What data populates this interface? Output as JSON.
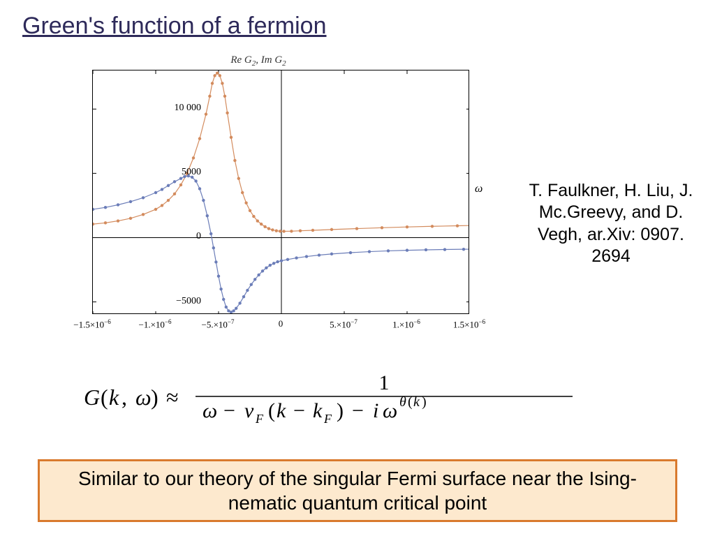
{
  "title": "Green's function of a fermion",
  "chart": {
    "type": "line",
    "title_parts": {
      "re": "Re",
      "g2a": "G",
      "sub2a": "2",
      "sep": ", ",
      "im": "Im",
      "g2b": "G",
      "sub2b": "2"
    },
    "xlim": [
      -1.5e-06,
      1.5e-06
    ],
    "ylim": [
      -6000,
      13000
    ],
    "xticks": [
      {
        "val": -1.5e-06,
        "label": "−1.5×10",
        "sup": "−6"
      },
      {
        "val": -1e-06,
        "label": "−1.×10",
        "sup": "−6"
      },
      {
        "val": -5e-07,
        "label": "−5.×10",
        "sup": "−7"
      },
      {
        "val": 0,
        "label": "0",
        "sup": ""
      },
      {
        "val": 5e-07,
        "label": "5.×10",
        "sup": "−7"
      },
      {
        "val": 1e-06,
        "label": "1.×10",
        "sup": "−6"
      },
      {
        "val": 1.5e-06,
        "label": "1.5×10",
        "sup": "−6"
      }
    ],
    "yticks": [
      {
        "val": -5000,
        "label": "−5000"
      },
      {
        "val": 0,
        "label": "0"
      },
      {
        "val": 5000,
        "label": "5000"
      },
      {
        "val": 10000,
        "label": "10 000"
      }
    ],
    "axis_label_omega": "ω",
    "background_color": "#ffffff",
    "axis_color": "#000000",
    "series": [
      {
        "name": "ImG2",
        "color": "#d38b5d",
        "marker_color": "#d38b5d",
        "line_width": 1.2,
        "marker_size": 2.2,
        "points": [
          [
            -1.5e-06,
            1050
          ],
          [
            -1.4e-06,
            1150
          ],
          [
            -1.3e-06,
            1300
          ],
          [
            -1.2e-06,
            1500
          ],
          [
            -1.1e-06,
            1800
          ],
          [
            -1e-06,
            2200
          ],
          [
            -9.5e-07,
            2500
          ],
          [
            -9e-07,
            2900
          ],
          [
            -8.5e-07,
            3400
          ],
          [
            -8e-07,
            4100
          ],
          [
            -7.5e-07,
            5000
          ],
          [
            -7e-07,
            6200
          ],
          [
            -6.5e-07,
            7700
          ],
          [
            -6e-07,
            9600
          ],
          [
            -5.7e-07,
            11000
          ],
          [
            -5.5e-07,
            12000
          ],
          [
            -5.3e-07,
            12600
          ],
          [
            -5.1e-07,
            12800
          ],
          [
            -4.9e-07,
            12600
          ],
          [
            -4.7e-07,
            12000
          ],
          [
            -4.5e-07,
            11000
          ],
          [
            -4.3e-07,
            9700
          ],
          [
            -4e-07,
            7800
          ],
          [
            -3.7e-07,
            6000
          ],
          [
            -3.4e-07,
            4600
          ],
          [
            -3.1e-07,
            3500
          ],
          [
            -2.8e-07,
            2700
          ],
          [
            -2.5e-07,
            2100
          ],
          [
            -2.2e-07,
            1650
          ],
          [
            -1.9e-07,
            1300
          ],
          [
            -1.6e-07,
            1050
          ],
          [
            -1.3e-07,
            850
          ],
          [
            -1e-07,
            700
          ],
          [
            -7e-08,
            600
          ],
          [
            -4e-08,
            530
          ],
          [
            -1e-08,
            500
          ],
          [
            2e-08,
            490
          ],
          [
            8e-08,
            500
          ],
          [
            1.5e-07,
            530
          ],
          [
            2.5e-07,
            570
          ],
          [
            4e-07,
            630
          ],
          [
            6e-07,
            700
          ],
          [
            8e-07,
            770
          ],
          [
            1e-06,
            830
          ],
          [
            1.2e-06,
            880
          ],
          [
            1.4e-06,
            920
          ],
          [
            1.5e-06,
            940
          ]
        ]
      },
      {
        "name": "ReG2",
        "color": "#6b7db8",
        "marker_color": "#6b7db8",
        "line_width": 1.2,
        "marker_size": 2.2,
        "points": [
          [
            -1.5e-06,
            2200
          ],
          [
            -1.4e-06,
            2350
          ],
          [
            -1.3e-06,
            2550
          ],
          [
            -1.2e-06,
            2800
          ],
          [
            -1.1e-06,
            3100
          ],
          [
            -1e-06,
            3500
          ],
          [
            -9.5e-07,
            3750
          ],
          [
            -9e-07,
            4050
          ],
          [
            -8.5e-07,
            4350
          ],
          [
            -8e-07,
            4600
          ],
          [
            -7.7e-07,
            4750
          ],
          [
            -7.4e-07,
            4800
          ],
          [
            -7.1e-07,
            4700
          ],
          [
            -6.8e-07,
            4400
          ],
          [
            -6.5e-07,
            3800
          ],
          [
            -6.2e-07,
            2900
          ],
          [
            -5.9e-07,
            1700
          ],
          [
            -5.6e-07,
            300
          ],
          [
            -5.4e-07,
            -800
          ],
          [
            -5.2e-07,
            -1900
          ],
          [
            -5e-07,
            -3000
          ],
          [
            -4.8e-07,
            -4000
          ],
          [
            -4.6e-07,
            -4800
          ],
          [
            -4.4e-07,
            -5400
          ],
          [
            -4.2e-07,
            -5700
          ],
          [
            -4e-07,
            -5800
          ],
          [
            -3.8e-07,
            -5700
          ],
          [
            -3.6e-07,
            -5500
          ],
          [
            -3.3e-07,
            -5100
          ],
          [
            -3e-07,
            -4600
          ],
          [
            -2.7e-07,
            -4100
          ],
          [
            -2.4e-07,
            -3650
          ],
          [
            -2.1e-07,
            -3250
          ],
          [
            -1.8e-07,
            -2900
          ],
          [
            -1.5e-07,
            -2600
          ],
          [
            -1.2e-07,
            -2350
          ],
          [
            -9e-08,
            -2150
          ],
          [
            -6e-08,
            -2000
          ],
          [
            -3e-08,
            -1880
          ],
          [
            0,
            -1800
          ],
          [
            5e-08,
            -1700
          ],
          [
            1.2e-07,
            -1580
          ],
          [
            2e-07,
            -1470
          ],
          [
            3e-07,
            -1360
          ],
          [
            4e-07,
            -1270
          ],
          [
            5.5e-07,
            -1170
          ],
          [
            7e-07,
            -1090
          ],
          [
            8.5e-07,
            -1030
          ],
          [
            1e-06,
            -985
          ],
          [
            1.15e-06,
            -950
          ],
          [
            1.3e-06,
            -925
          ],
          [
            1.45e-06,
            -905
          ],
          [
            1.5e-06,
            -900
          ]
        ]
      }
    ]
  },
  "citation": "T. Faulkner, H. Liu, J. Mc.Greevy, and D. Vegh, ar.Xiv: 0907. 2694",
  "formula": {
    "lhs": "G(k, ω) ≈",
    "numerator": "1",
    "denom_parts": [
      "ω − v",
      "F",
      "(k − k",
      "F",
      ") − iω",
      "θ(k)"
    ],
    "font_size": 30,
    "color": "#000000"
  },
  "callout": {
    "text": "Similar to our theory of the singular Fermi surface near the Ising-nematic quantum critical point",
    "bg": "#fde9ce",
    "border": "#d97a2e"
  }
}
